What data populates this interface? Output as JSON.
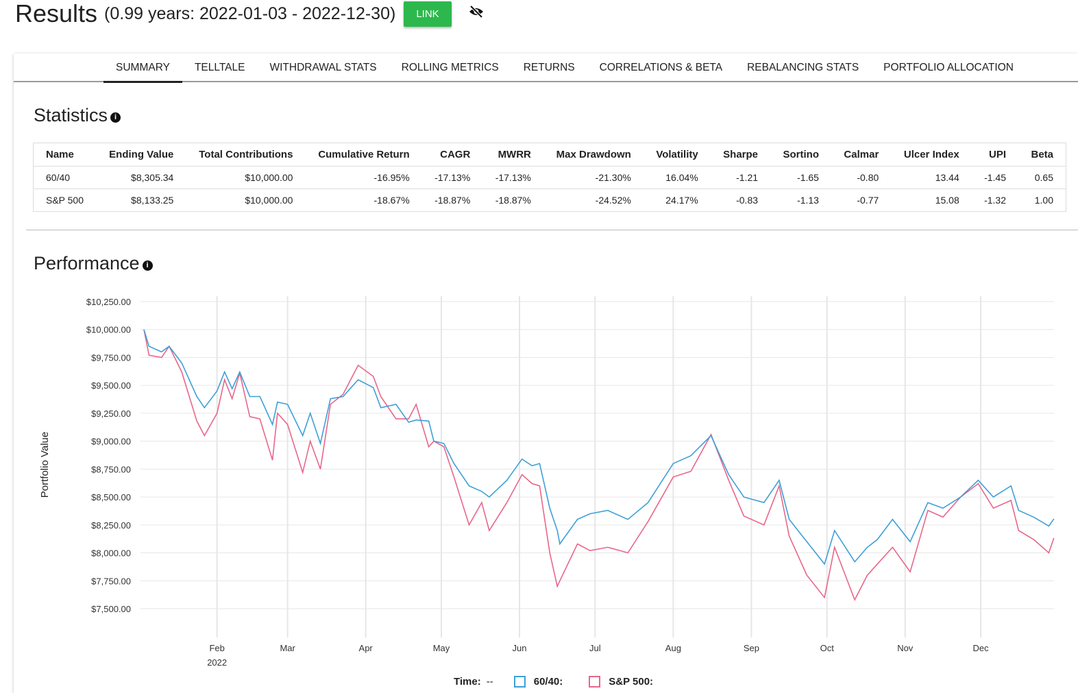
{
  "header": {
    "title": "Results",
    "subtitle": "(0.99 years: 2022-01-03 - 2022-12-30)",
    "link_label": "LINK",
    "visibility_icon": "eye-slash-icon"
  },
  "tabs": [
    {
      "label": "SUMMARY",
      "active": true
    },
    {
      "label": "TELLTALE"
    },
    {
      "label": "WITHDRAWAL STATS"
    },
    {
      "label": "ROLLING METRICS"
    },
    {
      "label": "RETURNS"
    },
    {
      "label": "CORRELATIONS & BETA"
    },
    {
      "label": "REBALANCING STATS"
    },
    {
      "label": "PORTFOLIO ALLOCATION"
    }
  ],
  "statistics": {
    "title": "Statistics",
    "columns": [
      "Name",
      "Ending Value",
      "Total Contributions",
      "Cumulative Return",
      "CAGR",
      "MWRR",
      "Max Drawdown",
      "Volatility",
      "Sharpe",
      "Sortino",
      "Calmar",
      "Ulcer Index",
      "UPI",
      "Beta"
    ],
    "rows": [
      [
        "60/40",
        "$8,305.34",
        "$10,000.00",
        "-16.95%",
        "-17.13%",
        "-17.13%",
        "-21.30%",
        "16.04%",
        "-1.21",
        "-1.65",
        "-0.80",
        "13.44",
        "-1.45",
        "0.65"
      ],
      [
        "S&P 500",
        "$8,133.25",
        "$10,000.00",
        "-18.67%",
        "-18.87%",
        "-18.87%",
        "-24.52%",
        "24.17%",
        "-0.83",
        "-1.13",
        "-0.77",
        "15.08",
        "-1.32",
        "1.00"
      ]
    ]
  },
  "performance": {
    "title": "Performance"
  },
  "chart_data": {
    "type": "line",
    "ylabel": "Portfolio Value",
    "ylim": [
      7500,
      10250
    ],
    "yticks": [
      "$10,250.00",
      "$10,000.00",
      "$9,750.00",
      "$9,500.00",
      "$9,250.00",
      "$9,000.00",
      "$8,750.00",
      "$8,500.00",
      "$8,250.00",
      "$8,000.00",
      "$7,750.00",
      "$7,500.00"
    ],
    "xticks": [
      {
        "label": "Feb",
        "date": "2022-02-01",
        "year": "2022"
      },
      {
        "label": "Mar",
        "date": "2022-03-01"
      },
      {
        "label": "Apr",
        "date": "2022-04-01"
      },
      {
        "label": "May",
        "date": "2022-05-01"
      },
      {
        "label": "Jun",
        "date": "2022-06-01"
      },
      {
        "label": "Jul",
        "date": "2022-07-01"
      },
      {
        "label": "Aug",
        "date": "2022-08-01"
      },
      {
        "label": "Sep",
        "date": "2022-09-01"
      },
      {
        "label": "Oct",
        "date": "2022-10-01"
      },
      {
        "label": "Nov",
        "date": "2022-11-01"
      },
      {
        "label": "Dec",
        "date": "2022-12-01"
      }
    ],
    "grid": true,
    "x": [
      "2022-01-03",
      "2022-01-05",
      "2022-01-10",
      "2022-01-13",
      "2022-01-18",
      "2022-01-24",
      "2022-01-27",
      "2022-02-01",
      "2022-02-04",
      "2022-02-07",
      "2022-02-10",
      "2022-02-14",
      "2022-02-18",
      "2022-02-23",
      "2022-02-25",
      "2022-03-01",
      "2022-03-07",
      "2022-03-10",
      "2022-03-14",
      "2022-03-18",
      "2022-03-23",
      "2022-03-29",
      "2022-04-04",
      "2022-04-07",
      "2022-04-13",
      "2022-04-18",
      "2022-04-21",
      "2022-04-26",
      "2022-04-28",
      "2022-05-02",
      "2022-05-06",
      "2022-05-12",
      "2022-05-17",
      "2022-05-20",
      "2022-05-27",
      "2022-06-02",
      "2022-06-06",
      "2022-06-09",
      "2022-06-13",
      "2022-06-16",
      "2022-06-17",
      "2022-06-24",
      "2022-06-29",
      "2022-07-06",
      "2022-07-14",
      "2022-07-22",
      "2022-08-01",
      "2022-08-08",
      "2022-08-16",
      "2022-08-23",
      "2022-08-29",
      "2022-09-06",
      "2022-09-12",
      "2022-09-16",
      "2022-09-23",
      "2022-09-30",
      "2022-10-04",
      "2022-10-12",
      "2022-10-17",
      "2022-10-21",
      "2022-10-27",
      "2022-11-03",
      "2022-11-10",
      "2022-11-16",
      "2022-11-23",
      "2022-11-30",
      "2022-12-06",
      "2022-12-13",
      "2022-12-16",
      "2022-12-22",
      "2022-12-28",
      "2022-12-30"
    ],
    "series": [
      {
        "name": "60/40",
        "color": "#3d9fd8",
        "values": [
          10000,
          9850,
          9800,
          9850,
          9700,
          9400,
          9300,
          9450,
          9620,
          9470,
          9620,
          9400,
          9400,
          9150,
          9350,
          9330,
          9050,
          9250,
          8980,
          9380,
          9400,
          9550,
          9480,
          9300,
          9330,
          9170,
          9190,
          9180,
          9000,
          8980,
          8800,
          8600,
          8550,
          8500,
          8650,
          8840,
          8780,
          8800,
          8400,
          8200,
          8080,
          8300,
          8350,
          8380,
          8300,
          8450,
          8800,
          8870,
          9050,
          8700,
          8500,
          8450,
          8650,
          8300,
          8100,
          7900,
          8200,
          7920,
          8050,
          8120,
          8300,
          8100,
          8450,
          8400,
          8500,
          8650,
          8500,
          8600,
          8380,
          8320,
          8240,
          8305
        ]
      },
      {
        "name": "S&P 500",
        "color": "#e8668a",
        "values": [
          10000,
          9770,
          9750,
          9850,
          9620,
          9180,
          9050,
          9250,
          9550,
          9380,
          9610,
          9220,
          9200,
          8830,
          9250,
          9150,
          8720,
          9000,
          8750,
          9330,
          9420,
          9680,
          9580,
          9400,
          9200,
          9200,
          9330,
          8950,
          9000,
          8950,
          8680,
          8250,
          8450,
          8200,
          8450,
          8700,
          8620,
          8600,
          8000,
          7700,
          7750,
          8080,
          8020,
          8050,
          8000,
          8280,
          8680,
          8730,
          9060,
          8650,
          8330,
          8250,
          8600,
          8150,
          7800,
          7600,
          8050,
          7580,
          7800,
          7900,
          8050,
          7830,
          8380,
          8320,
          8500,
          8620,
          8400,
          8470,
          8200,
          8120,
          8000,
          8133
        ]
      }
    ]
  },
  "legend": {
    "time_label": "Time:",
    "time_value": "--",
    "series1_label": "60/40:",
    "series2_label": "S&P 500:"
  }
}
